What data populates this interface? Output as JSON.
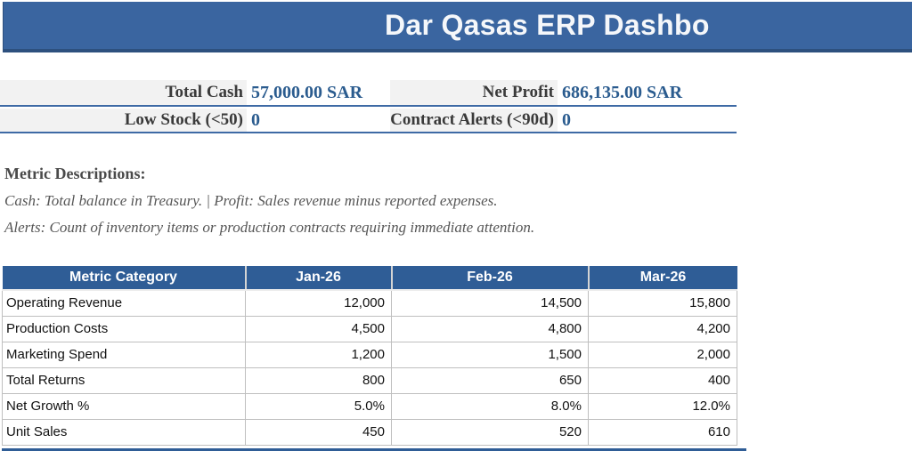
{
  "app": {
    "title": "Dar Qasas ERP Dashbo"
  },
  "kpis": {
    "items": [
      {
        "label": "Total Cash",
        "value": "57,000.00 SAR"
      },
      {
        "label": "Net Profit",
        "value": "686,135.00 SAR"
      },
      {
        "label": "Low Stock (<50)",
        "value": "0"
      },
      {
        "label": "Contract Alerts (<90d)",
        "value": "0"
      }
    ]
  },
  "descriptions": {
    "heading": "Metric Descriptions:",
    "lines": [
      "Cash: Total balance in Treasury. | Profit: Sales revenue minus reported expenses.",
      "Alerts: Count of inventory items or production contracts requiring immediate attention."
    ]
  },
  "table": {
    "columns": [
      "Metric Category",
      "Jan-26",
      "Feb-26",
      "Mar-26"
    ],
    "rows": [
      {
        "category": "Operating Revenue",
        "values": [
          "12,000",
          "14,500",
          "15,800"
        ]
      },
      {
        "category": "Production Costs",
        "values": [
          "4,500",
          "4,800",
          "4,200"
        ]
      },
      {
        "category": "Marketing Spend",
        "values": [
          "1,200",
          "1,500",
          "2,000"
        ]
      },
      {
        "category": "Total Returns",
        "values": [
          "800",
          "650",
          "400"
        ]
      },
      {
        "category": "Net Growth %",
        "values": [
          "5.0%",
          "8.0%",
          "12.0%"
        ]
      },
      {
        "category": "Unit Sales",
        "values": [
          "450",
          "520",
          "610"
        ]
      }
    ]
  },
  "colors": {
    "banner_blue": "#3a65a0",
    "table_header_blue": "#2f5d96",
    "kpi_value_blue": "#2b5c8f",
    "kpi_underline_blue": "#3e6aa5",
    "kpi_label_bg": "#f2f2f2",
    "text_dark": "#3a3a3a",
    "description_gray": "#565656",
    "grid_border": "#bfbfbf"
  }
}
